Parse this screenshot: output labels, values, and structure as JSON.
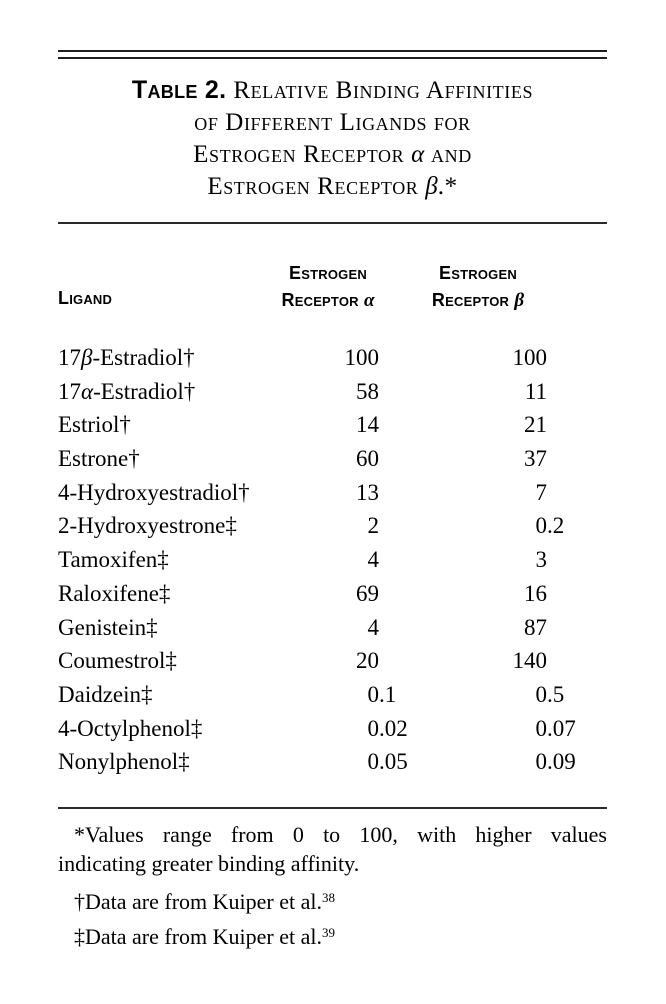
{
  "title": {
    "label": "Table 2.",
    "lines": [
      "Relative Binding Affinities",
      "of Different Ligands for",
      "Estrogen Receptor α and",
      "Estrogen Receptor β.*"
    ]
  },
  "table": {
    "ligand_header": "Ligand",
    "col_alpha_header": [
      "Estrogen",
      "Receptor α"
    ],
    "col_beta_header": [
      "Estrogen",
      "Receptor β"
    ],
    "rows": [
      {
        "ligand": "17β-Estradiol†",
        "alpha": "100",
        "beta": "100"
      },
      {
        "ligand": "17α-Estradiol†",
        "alpha": "58",
        "beta": "11"
      },
      {
        "ligand": "Estriol†",
        "alpha": "14",
        "beta": "21"
      },
      {
        "ligand": "Estrone†",
        "alpha": "60",
        "beta": "37"
      },
      {
        "ligand": "4-Hydroxyestradiol†",
        "alpha": "13",
        "beta": "7"
      },
      {
        "ligand": "2-Hydroxyestrone‡",
        "alpha": "2",
        "beta": "0.2"
      },
      {
        "ligand": "Tamoxifen‡",
        "alpha": "4",
        "beta": "3"
      },
      {
        "ligand": "Raloxifene‡",
        "alpha": "69",
        "beta": "16"
      },
      {
        "ligand": "Genistein‡",
        "alpha": "4",
        "beta": "87"
      },
      {
        "ligand": "Coumestrol‡",
        "alpha": "20",
        "beta": "140"
      },
      {
        "ligand": "Daidzein‡",
        "alpha": "0.1",
        "beta": "0.5"
      },
      {
        "ligand": "4-Octylphenol‡",
        "alpha": "0.02",
        "beta": "0.07"
      },
      {
        "ligand": "Nonylphenol‡",
        "alpha": "0.05",
        "beta": "0.09"
      }
    ]
  },
  "footnotes": {
    "asterisk": {
      "symbol": "*",
      "line1": "Values range from 0 to 100, with higher values",
      "line2": "indicating greater binding affinity."
    },
    "dagger": {
      "symbol": "†",
      "text": "Data are from Kuiper et al.",
      "ref": "38"
    },
    "double_dagger": {
      "symbol": "‡",
      "text": "Data are from Kuiper et al.",
      "ref": "39"
    }
  },
  "colors": {
    "text": "#000000",
    "background": "#ffffff",
    "rule": "#1e1e1e"
  }
}
